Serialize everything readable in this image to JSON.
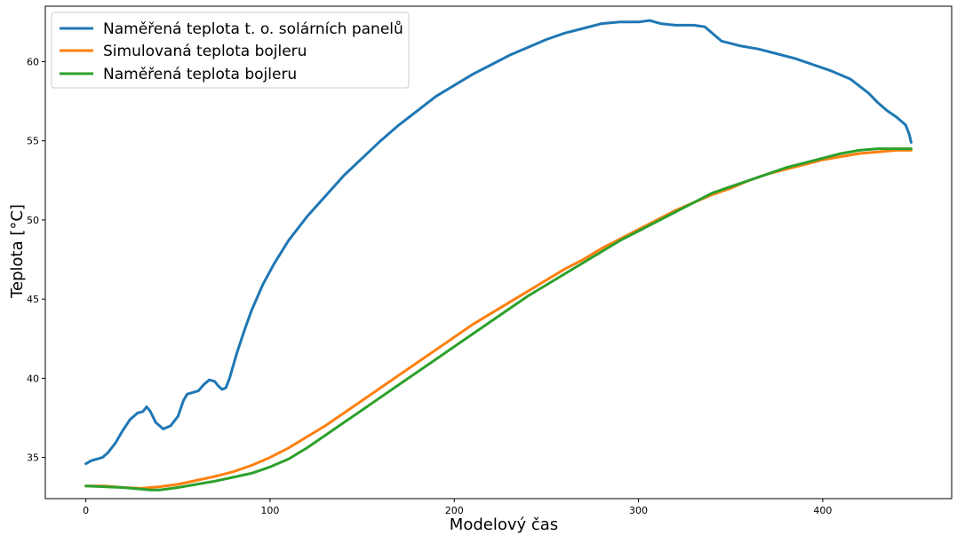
{
  "chart_data": {
    "type": "line",
    "title": "",
    "xlabel": "Modelový čas",
    "ylabel": "Teplota [°C]",
    "xlim": [
      -22,
      470
    ],
    "ylim": [
      32.4,
      63.5
    ],
    "xticks": [
      0,
      100,
      200,
      300,
      400
    ],
    "yticks": [
      35,
      40,
      45,
      50,
      55,
      60
    ],
    "grid": false,
    "legend_position": "top-left",
    "series": [
      {
        "name": "Naměřená teplota t. o. solárních panelů",
        "color": "#1f77b4",
        "x": [
          0,
          3,
          6,
          9,
          12,
          16,
          20,
          24,
          28,
          31,
          33,
          35,
          38,
          42,
          46,
          50,
          53,
          55,
          58,
          61,
          64,
          67,
          70,
          72,
          74,
          76,
          78,
          82,
          86,
          90,
          96,
          102,
          110,
          120,
          130,
          140,
          150,
          160,
          170,
          180,
          190,
          200,
          210,
          220,
          230,
          240,
          250,
          260,
          270,
          280,
          290,
          300,
          306,
          312,
          320,
          330,
          336,
          345,
          355,
          365,
          375,
          385,
          395,
          405,
          415,
          425,
          430,
          435,
          440,
          445,
          447,
          448
        ],
        "y": [
          34.6,
          34.8,
          34.9,
          35.0,
          35.3,
          35.9,
          36.7,
          37.4,
          37.8,
          37.9,
          38.2,
          37.9,
          37.2,
          36.8,
          37.0,
          37.6,
          38.6,
          39.0,
          39.1,
          39.2,
          39.6,
          39.9,
          39.8,
          39.5,
          39.3,
          39.4,
          40.0,
          41.6,
          43.0,
          44.3,
          45.9,
          47.2,
          48.7,
          50.2,
          51.5,
          52.8,
          53.9,
          55.0,
          56.0,
          56.9,
          57.8,
          58.5,
          59.2,
          59.8,
          60.4,
          60.9,
          61.4,
          61.8,
          62.1,
          62.4,
          62.5,
          62.5,
          62.6,
          62.4,
          62.3,
          62.3,
          62.2,
          61.3,
          61.0,
          60.8,
          60.5,
          60.2,
          59.8,
          59.4,
          58.9,
          58.0,
          57.4,
          56.9,
          56.5,
          56.0,
          55.4,
          54.9
        ]
      },
      {
        "name": "Simulovaná teplota bojleru",
        "color": "#ff7f0e",
        "x": [
          0,
          10,
          20,
          30,
          35,
          40,
          50,
          60,
          70,
          80,
          90,
          100,
          110,
          120,
          130,
          140,
          150,
          160,
          170,
          180,
          190,
          200,
          210,
          220,
          230,
          240,
          250,
          260,
          270,
          280,
          290,
          300,
          310,
          320,
          330,
          340,
          350,
          360,
          370,
          380,
          390,
          400,
          410,
          420,
          430,
          440,
          448
        ],
        "y": [
          33.2,
          33.2,
          33.1,
          33.05,
          33.1,
          33.15,
          33.3,
          33.55,
          33.8,
          34.1,
          34.5,
          35.0,
          35.6,
          36.3,
          37.0,
          37.8,
          38.6,
          39.4,
          40.2,
          41.0,
          41.8,
          42.6,
          43.4,
          44.1,
          44.8,
          45.5,
          46.2,
          46.9,
          47.5,
          48.2,
          48.8,
          49.4,
          50.0,
          50.6,
          51.1,
          51.6,
          52.0,
          52.5,
          52.9,
          53.2,
          53.5,
          53.8,
          54.0,
          54.2,
          54.3,
          54.4,
          54.4
        ]
      },
      {
        "name": "Naměřená teplota bojleru",
        "color": "#2ca02c",
        "x": [
          0,
          10,
          20,
          30,
          35,
          40,
          50,
          60,
          70,
          80,
          90,
          100,
          110,
          120,
          130,
          140,
          150,
          160,
          170,
          180,
          190,
          200,
          210,
          220,
          230,
          240,
          250,
          260,
          270,
          280,
          290,
          300,
          310,
          320,
          330,
          340,
          350,
          360,
          370,
          380,
          390,
          400,
          410,
          420,
          430,
          440,
          448
        ],
        "y": [
          33.2,
          33.15,
          33.1,
          33.0,
          32.95,
          32.95,
          33.1,
          33.3,
          33.5,
          33.75,
          34.0,
          34.4,
          34.9,
          35.6,
          36.4,
          37.2,
          38.0,
          38.8,
          39.6,
          40.4,
          41.2,
          42.0,
          42.8,
          43.6,
          44.4,
          45.2,
          45.9,
          46.6,
          47.3,
          48.0,
          48.7,
          49.3,
          49.9,
          50.5,
          51.1,
          51.7,
          52.1,
          52.5,
          52.9,
          53.3,
          53.6,
          53.9,
          54.2,
          54.4,
          54.5,
          54.5,
          54.5
        ]
      }
    ]
  }
}
